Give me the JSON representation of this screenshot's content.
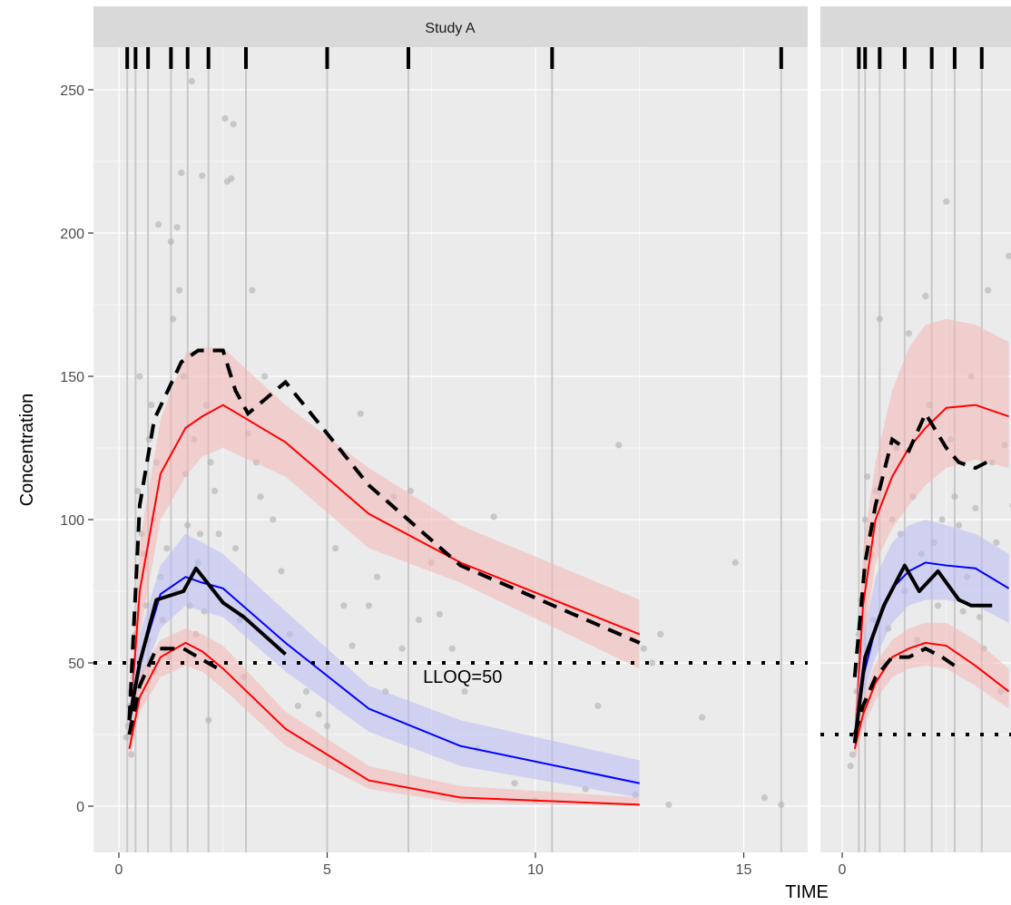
{
  "chart_data": {
    "type": "line",
    "ylabel": "Concentration",
    "xlabel": "TIME",
    "xlim": [
      -0.5,
      17.2
    ],
    "ylim": [
      -15,
      266
    ],
    "x_ticks": [
      0,
      5,
      10,
      15
    ],
    "y_ticks": [
      0,
      50,
      100,
      150,
      200,
      250
    ],
    "grid": true,
    "legend": "none",
    "colors": {
      "panel_bg": "#ebebeb",
      "strip_bg": "#d9d9d9",
      "grid": "#ffffff",
      "bin_line": "#c8c8c8",
      "obs_point": "#b4b4b4",
      "pi_outer_line": "#ff0000",
      "pi_outer_fill": "#f4b6b6",
      "pi_median_line": "#0000ff",
      "pi_median_fill": "#b9b9f4",
      "observed": "#000000"
    },
    "panels": [
      {
        "title": "Study A",
        "bin_edges": [
          0.2,
          0.4,
          0.7,
          1.25,
          1.65,
          2.15,
          3.05,
          5.0,
          6.95,
          10.4,
          15.9
        ],
        "lloq": {
          "value": 50,
          "label": "LLOQ=50"
        },
        "sim_upper": {
          "x": [
            0.25,
            0.5,
            1.0,
            1.6,
            2.0,
            2.5,
            4.0,
            6.0,
            8.2,
            12.5
          ],
          "median": [
            25,
            75,
            116,
            132,
            136,
            140,
            127,
            102,
            85,
            60
          ],
          "lo": [
            22,
            60,
            100,
            115,
            122,
            125,
            115,
            90,
            78,
            48
          ],
          "hi": [
            30,
            92,
            135,
            158,
            160,
            160,
            140,
            118,
            98,
            72
          ]
        },
        "sim_median": {
          "x": [
            0.25,
            0.5,
            1.0,
            1.6,
            2.0,
            2.5,
            4.0,
            6.0,
            8.2,
            12.5
          ],
          "median": [
            30,
            50,
            74,
            80,
            78,
            76,
            57,
            34,
            21,
            8
          ],
          "lo": [
            27,
            42,
            62,
            70,
            68,
            66,
            47,
            26,
            14,
            3
          ],
          "hi": [
            35,
            60,
            84,
            95,
            92,
            88,
            68,
            42,
            30,
            16
          ]
        },
        "sim_lower": {
          "x": [
            0.25,
            0.5,
            1.0,
            1.6,
            2.0,
            2.5,
            4.0,
            6.0,
            8.2,
            12.5
          ],
          "median": [
            20,
            38,
            52,
            57,
            54,
            48,
            27,
            9,
            3,
            0.5
          ],
          "lo": [
            16,
            33,
            45,
            49,
            47,
            41,
            21,
            6,
            1,
            0
          ],
          "hi": [
            25,
            46,
            58,
            62,
            60,
            56,
            33,
            14,
            7,
            3
          ]
        },
        "obs_upper": {
          "x": [
            0.25,
            0.5,
            0.85,
            1.5,
            1.9,
            2.5,
            2.8,
            3.1,
            4.0,
            6.0,
            8.2,
            12.5
          ],
          "y": [
            30,
            105,
            135,
            155,
            159,
            159,
            145,
            137,
            148,
            112,
            84,
            57
          ]
        },
        "obs_median": {
          "x": [
            0.25,
            0.5,
            0.9,
            1.55,
            1.85,
            2.5,
            3.0,
            4.0
          ],
          "y": [
            30,
            50,
            72,
            75,
            83,
            71,
            66,
            53
          ]
        },
        "obs_lower": {
          "x": [
            0.25,
            0.5,
            0.9,
            1.55,
            1.9,
            2.5
          ],
          "y": [
            25,
            42,
            55,
            55,
            52,
            47
          ]
        },
        "points": [
          [
            0.18,
            24
          ],
          [
            0.22,
            28
          ],
          [
            0.25,
            35
          ],
          [
            0.28,
            40
          ],
          [
            0.3,
            18
          ],
          [
            0.35,
            45
          ],
          [
            0.4,
            60
          ],
          [
            0.45,
            110
          ],
          [
            0.5,
            150
          ],
          [
            0.55,
            95
          ],
          [
            0.6,
            88
          ],
          [
            0.65,
            70
          ],
          [
            0.7,
            58
          ],
          [
            0.72,
            128
          ],
          [
            0.78,
            140
          ],
          [
            0.82,
            100
          ],
          [
            0.85,
            47
          ],
          [
            0.9,
            120
          ],
          [
            0.95,
            203
          ],
          [
            1.0,
            80
          ],
          [
            1.05,
            65
          ],
          [
            1.1,
            55
          ],
          [
            1.15,
            90
          ],
          [
            1.2,
            52
          ],
          [
            1.25,
            197
          ],
          [
            1.3,
            170
          ],
          [
            1.35,
            75
          ],
          [
            1.4,
            202
          ],
          [
            1.45,
            180
          ],
          [
            1.5,
            221
          ],
          [
            1.55,
            150
          ],
          [
            1.6,
            116
          ],
          [
            1.65,
            98
          ],
          [
            1.7,
            70
          ],
          [
            1.75,
            253
          ],
          [
            1.8,
            128
          ],
          [
            1.85,
            60
          ],
          [
            1.9,
            85
          ],
          [
            1.95,
            95
          ],
          [
            2.0,
            220
          ],
          [
            2.05,
            68
          ],
          [
            2.1,
            140
          ],
          [
            2.15,
            30
          ],
          [
            2.2,
            120
          ],
          [
            2.3,
            110
          ],
          [
            2.4,
            95
          ],
          [
            2.55,
            240
          ],
          [
            2.6,
            218
          ],
          [
            2.7,
            219
          ],
          [
            2.75,
            238
          ],
          [
            2.8,
            90
          ],
          [
            2.9,
            65
          ],
          [
            3.0,
            45
          ],
          [
            3.1,
            130
          ],
          [
            3.2,
            180
          ],
          [
            3.3,
            120
          ],
          [
            3.4,
            108
          ],
          [
            3.5,
            150
          ],
          [
            3.7,
            100
          ],
          [
            3.9,
            82
          ],
          [
            4.1,
            60
          ],
          [
            4.3,
            35
          ],
          [
            4.5,
            40
          ],
          [
            4.8,
            32
          ],
          [
            5.0,
            28
          ],
          [
            5.2,
            90
          ],
          [
            5.4,
            70
          ],
          [
            5.6,
            56
          ],
          [
            5.8,
            137
          ],
          [
            6.0,
            70
          ],
          [
            6.2,
            80
          ],
          [
            6.4,
            40
          ],
          [
            6.6,
            108
          ],
          [
            6.8,
            55
          ],
          [
            7.0,
            110
          ],
          [
            7.2,
            65
          ],
          [
            7.5,
            85
          ],
          [
            7.7,
            67
          ],
          [
            8.0,
            55
          ],
          [
            8.3,
            40
          ],
          [
            8.6,
            20
          ],
          [
            9.0,
            101
          ],
          [
            9.5,
            8
          ],
          [
            10.0,
            2
          ],
          [
            11.2,
            6
          ],
          [
            11.5,
            35
          ],
          [
            12.0,
            126
          ],
          [
            12.4,
            4
          ],
          [
            12.6,
            55
          ],
          [
            12.8,
            50
          ],
          [
            13.0,
            60
          ],
          [
            13.2,
            0.5
          ],
          [
            14.0,
            31
          ],
          [
            14.8,
            85
          ],
          [
            15.5,
            3
          ],
          [
            15.9,
            0.5
          ]
        ]
      },
      {
        "title": "",
        "bin_edges": [
          0.4,
          0.55,
          0.9,
          1.5,
          2.15,
          2.7,
          3.35,
          4.1
        ],
        "lloq": {
          "value": 25,
          "label": ""
        },
        "sim_upper": {
          "x": [
            0.3,
            0.5,
            0.8,
            1.2,
            1.6,
            2.0,
            2.5,
            3.2,
            4.0
          ],
          "median": [
            22,
            70,
            100,
            115,
            125,
            132,
            139,
            140,
            136
          ],
          "lo": [
            18,
            55,
            85,
            97,
            105,
            112,
            118,
            121,
            118
          ],
          "hi": [
            28,
            90,
            120,
            145,
            160,
            168,
            170,
            168,
            162
          ]
        },
        "sim_median": {
          "x": [
            0.3,
            0.5,
            0.8,
            1.2,
            1.6,
            2.0,
            2.5,
            3.2,
            4.0
          ],
          "median": [
            25,
            45,
            62,
            76,
            82,
            85,
            84,
            83,
            76
          ],
          "lo": [
            20,
            38,
            52,
            64,
            70,
            72,
            72,
            70,
            64
          ],
          "hi": [
            32,
            58,
            80,
            92,
            98,
            100,
            98,
            95,
            88
          ]
        },
        "sim_lower": {
          "x": [
            0.3,
            0.5,
            0.8,
            1.2,
            1.6,
            2.0,
            2.5,
            3.2,
            4.0
          ],
          "median": [
            20,
            32,
            43,
            52,
            55,
            57,
            56,
            49,
            40
          ],
          "lo": [
            16,
            27,
            37,
            45,
            48,
            49,
            48,
            42,
            34
          ],
          "hi": [
            25,
            38,
            50,
            58,
            62,
            64,
            64,
            58,
            48
          ]
        },
        "obs_upper": {
          "x": [
            0.3,
            0.55,
            0.8,
            1.2,
            1.6,
            2.0,
            2.5,
            2.8,
            3.2,
            3.6
          ],
          "y": [
            45,
            85,
            105,
            128,
            124,
            137,
            125,
            120,
            118,
            121
          ]
        },
        "obs_median": {
          "x": [
            0.3,
            0.55,
            1.0,
            1.5,
            1.85,
            2.3,
            2.8,
            3.1,
            3.6
          ],
          "y": [
            22,
            52,
            70,
            84,
            75,
            82,
            72,
            70,
            70
          ]
        },
        "obs_lower": {
          "x": [
            0.3,
            0.5,
            0.8,
            1.2,
            1.6,
            2.0,
            2.4,
            2.8
          ],
          "y": [
            25,
            35,
            45,
            52,
            52,
            55,
            52,
            48
          ]
        },
        "points": [
          [
            0.2,
            14
          ],
          [
            0.25,
            18
          ],
          [
            0.3,
            24
          ],
          [
            0.35,
            40
          ],
          [
            0.4,
            60
          ],
          [
            0.45,
            72
          ],
          [
            0.55,
            100
          ],
          [
            0.6,
            115
          ],
          [
            0.7,
            88
          ],
          [
            0.75,
            65
          ],
          [
            0.8,
            110
          ],
          [
            0.9,
            170
          ],
          [
            1.0,
            50
          ],
          [
            1.1,
            62
          ],
          [
            1.2,
            100
          ],
          [
            1.3,
            125
          ],
          [
            1.4,
            95
          ],
          [
            1.5,
            75
          ],
          [
            1.6,
            165
          ],
          [
            1.7,
            108
          ],
          [
            1.8,
            58
          ],
          [
            1.9,
            88
          ],
          [
            2.0,
            178
          ],
          [
            2.1,
            140
          ],
          [
            2.2,
            92
          ],
          [
            2.3,
            70
          ],
          [
            2.4,
            100
          ],
          [
            2.5,
            211
          ],
          [
            2.6,
            128
          ],
          [
            2.7,
            108
          ],
          [
            2.8,
            98
          ],
          [
            2.9,
            68
          ],
          [
            3.0,
            80
          ],
          [
            3.1,
            150
          ],
          [
            3.2,
            104
          ],
          [
            3.3,
            66
          ],
          [
            3.4,
            55
          ],
          [
            3.5,
            180
          ],
          [
            3.6,
            120
          ],
          [
            3.7,
            92
          ],
          [
            3.8,
            40
          ],
          [
            3.9,
            126
          ],
          [
            4.0,
            192
          ],
          [
            4.1,
            105
          ]
        ]
      }
    ]
  }
}
